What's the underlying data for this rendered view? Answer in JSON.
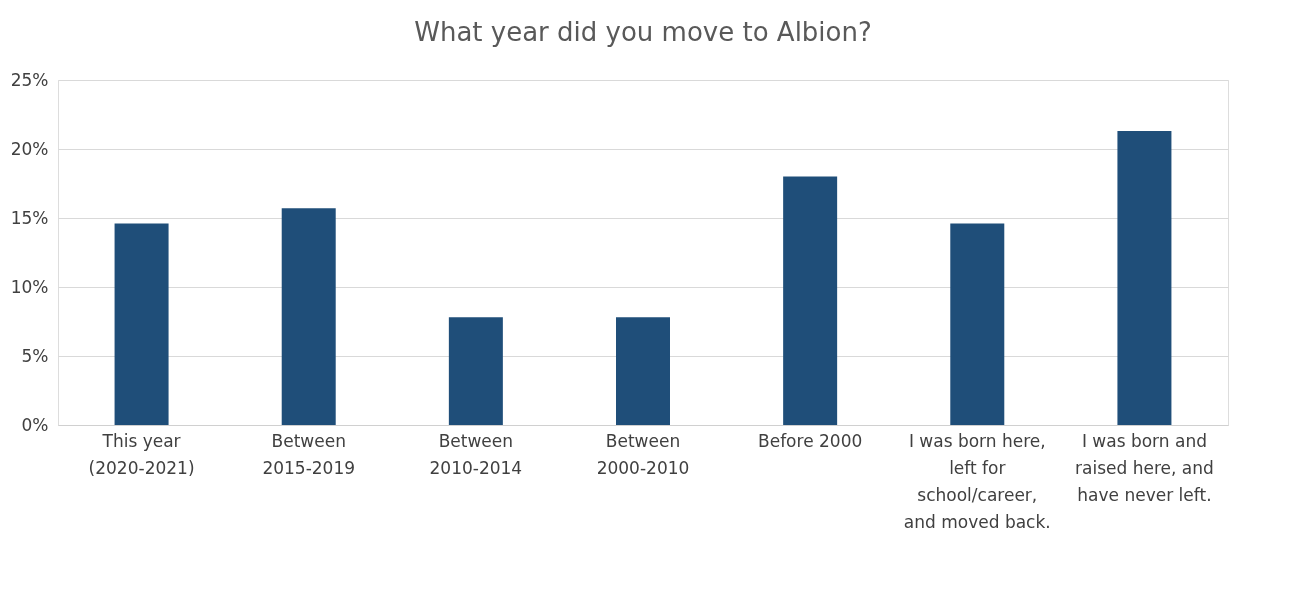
{
  "chart_data": {
    "type": "bar",
    "title": "What year did you move to Albion?",
    "categories": [
      "This year (2020-2021)",
      "Between 2015-2019",
      "Between 2010-2014",
      "Between 2000-2010",
      "Before 2000",
      "I was born here, left for school/career, and moved back.",
      "I was born and raised here, and have never left."
    ],
    "values": [
      14.6,
      15.7,
      7.8,
      7.8,
      18.0,
      14.6,
      21.3
    ],
    "color": "#1f4e79",
    "ylim": [
      0,
      25
    ],
    "yticks": [
      {
        "value": 0,
        "label": "0%"
      },
      {
        "value": 5,
        "label": "5%"
      },
      {
        "value": 10,
        "label": "10%"
      },
      {
        "value": 15,
        "label": "15%"
      },
      {
        "value": 20,
        "label": "20%"
      },
      {
        "value": 25,
        "label": "25%"
      }
    ],
    "grid": "y"
  }
}
